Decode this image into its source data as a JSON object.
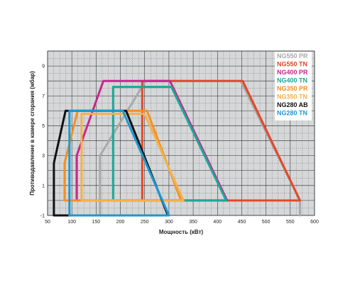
{
  "chart_data": {
    "type": "line",
    "title": "",
    "xlabel": "Мощность (кВт)",
    "ylabel": "Противодавление в камере сгорания (мбар)",
    "xlim": [
      50,
      600
    ],
    "ylim": [
      -1,
      10
    ],
    "x_ticks": [
      50,
      100,
      150,
      200,
      250,
      300,
      350,
      400,
      450,
      500,
      550,
      600
    ],
    "x_tick_labels": [
      "50",
      "100",
      "150",
      "200",
      "250",
      "300",
      "350",
      "400",
      "450",
      "500",
      "550",
      "600"
    ],
    "y_ticks": [
      -1,
      1,
      3,
      5,
      7,
      9
    ],
    "y_tick_labels": [
      "-1",
      "1",
      "3",
      "5",
      "7",
      "9"
    ],
    "grid": true,
    "plot_background": "#d6d7d8",
    "grid_color": "#2a2a2a",
    "legend_position": "top-right",
    "series": [
      {
        "name": "NG550 PR",
        "color": "#a9a9a9",
        "points": [
          [
            158,
            -1
          ],
          [
            158,
            3
          ],
          [
            252,
            8
          ],
          [
            448,
            8
          ],
          [
            570,
            0
          ],
          [
            570,
            -1
          ]
        ]
      },
      {
        "name": "NG550 TN",
        "color": "#e2482a",
        "points": [
          [
            245,
            0
          ],
          [
            245,
            8
          ],
          [
            452,
            8
          ],
          [
            570,
            0
          ],
          [
            245,
            0
          ]
        ]
      },
      {
        "name": "NG400 PR",
        "color": "#c8278e",
        "points": [
          [
            110,
            0
          ],
          [
            110,
            3
          ],
          [
            165,
            8
          ],
          [
            302,
            8
          ],
          [
            420,
            0
          ],
          [
            110,
            0
          ]
        ]
      },
      {
        "name": "NG400 TN",
        "color": "#1aa999",
        "points": [
          [
            185,
            0
          ],
          [
            185,
            7.6
          ],
          [
            305,
            7.6
          ],
          [
            418,
            0
          ],
          [
            185,
            0
          ]
        ]
      },
      {
        "name": "NG350 PR",
        "color": "#f19124",
        "points": [
          [
            85,
            0
          ],
          [
            85,
            2.5
          ],
          [
            112,
            6
          ],
          [
            255,
            6
          ],
          [
            325,
            0
          ],
          [
            85,
            0
          ]
        ]
      },
      {
        "name": "NG350 TN",
        "color": "#f6b04c",
        "points": [
          [
            120,
            0
          ],
          [
            120,
            5.8
          ],
          [
            250,
            5.8
          ],
          [
            330,
            0
          ],
          [
            120,
            0
          ]
        ]
      },
      {
        "name": "NG280 AB",
        "color": "#111111",
        "points": [
          [
            63,
            -1
          ],
          [
            63,
            2.5
          ],
          [
            87,
            6
          ],
          [
            212,
            6
          ],
          [
            298,
            -1
          ],
          [
            63,
            -1
          ]
        ]
      },
      {
        "name": "NG280 TN",
        "color": "#1c98d2",
        "points": [
          [
            95,
            -1
          ],
          [
            95,
            6
          ],
          [
            205,
            6
          ],
          [
            300,
            -1
          ],
          [
            95,
            -1
          ]
        ]
      }
    ]
  }
}
